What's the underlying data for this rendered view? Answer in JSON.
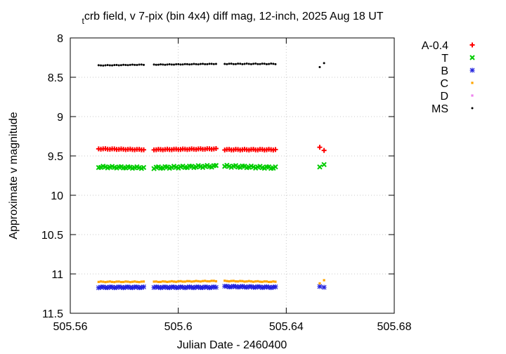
{
  "chart_data": {
    "type": "scatter",
    "title_prefix": "t",
    "title": "crb field, v 7-pix (bin 4x4) diff mag, 12-inch, 2025 Aug 18 UT",
    "xlabel": "Julian Date - 2460400",
    "ylabel": "Approximate v magnitude",
    "xlim": [
      505.56,
      505.68
    ],
    "ylim": [
      11.5,
      8.0
    ],
    "y_inverted": true,
    "grid": true,
    "legend_position": "outside-right",
    "x_ticks": [
      {
        "value": 505.56,
        "label": "505.56"
      },
      {
        "value": 505.6,
        "label": "505.6"
      },
      {
        "value": 505.64,
        "label": "505.64"
      },
      {
        "value": 505.68,
        "label": "505.68"
      }
    ],
    "y_ticks": [
      {
        "value": 8.0,
        "label": "8"
      },
      {
        "value": 8.5,
        "label": "8.5"
      },
      {
        "value": 9.0,
        "label": "9"
      },
      {
        "value": 9.5,
        "label": "9.5"
      },
      {
        "value": 10.0,
        "label": "10"
      },
      {
        "value": 10.5,
        "label": "10.5"
      },
      {
        "value": 11.0,
        "label": "11"
      },
      {
        "value": 11.5,
        "label": "11.5"
      }
    ],
    "x_segments": [
      {
        "start": 505.5705,
        "end": 505.5872,
        "n": 21
      },
      {
        "start": 505.591,
        "end": 505.614,
        "n": 29
      },
      {
        "start": 505.6172,
        "end": 505.636,
        "n": 24
      },
      {
        "start": 505.6524,
        "end": 505.654,
        "n": 2
      }
    ],
    "series": [
      {
        "name": "A-0.4",
        "color": "#ff0000",
        "marker": "plus",
        "segments": [
          {
            "from": 9.41,
            "to": 9.42,
            "wobble": 0.004
          },
          {
            "from": 9.42,
            "to": 9.41,
            "wobble": 0.004
          },
          {
            "from": 9.42,
            "to": 9.42,
            "wobble": 0.005
          },
          {
            "from": 9.39,
            "to": 9.43,
            "wobble": 0.0
          }
        ]
      },
      {
        "name": "T",
        "color": "#00cc00",
        "marker": "cross",
        "segments": [
          {
            "from": 9.64,
            "to": 9.65,
            "wobble": 0.01
          },
          {
            "from": 9.65,
            "to": 9.63,
            "wobble": 0.012
          },
          {
            "from": 9.63,
            "to": 9.65,
            "wobble": 0.012
          },
          {
            "from": 9.64,
            "to": 9.61,
            "wobble": 0.0
          }
        ]
      },
      {
        "name": "B",
        "color": "#2222dd",
        "marker": "star",
        "segments": [
          {
            "from": 11.17,
            "to": 11.17,
            "wobble": 0.006
          },
          {
            "from": 11.17,
            "to": 11.17,
            "wobble": 0.006
          },
          {
            "from": 11.16,
            "to": 11.17,
            "wobble": 0.006
          },
          {
            "from": 11.16,
            "to": 11.17,
            "wobble": 0.0
          }
        ]
      },
      {
        "name": "C",
        "color": "#ffa500",
        "marker": "square",
        "segments": [
          {
            "from": 11.1,
            "to": 11.1,
            "wobble": 0.004
          },
          {
            "from": 11.1,
            "to": 11.09,
            "wobble": 0.004
          },
          {
            "from": 11.09,
            "to": 11.1,
            "wobble": 0.004
          },
          {
            "from": 11.12,
            "to": 11.08,
            "wobble": 0.0
          }
        ]
      },
      {
        "name": "D",
        "color": "#ee82ee",
        "marker": "square",
        "segments": []
      },
      {
        "name": "MS",
        "color": "#000000",
        "marker": "dot",
        "segments": [
          {
            "from": 8.35,
            "to": 8.34,
            "wobble": 0.003
          },
          {
            "from": 8.34,
            "to": 8.33,
            "wobble": 0.003
          },
          {
            "from": 8.33,
            "to": 8.33,
            "wobble": 0.004
          },
          {
            "from": 8.37,
            "to": 8.32,
            "wobble": 0.0
          }
        ]
      }
    ]
  }
}
